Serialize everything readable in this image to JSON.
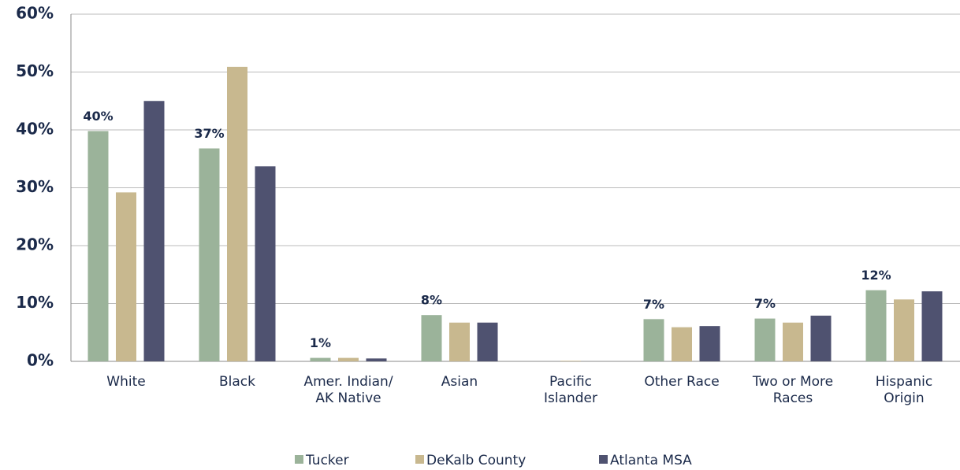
{
  "chart_data": {
    "type": "bar",
    "categories": [
      "White",
      "Black",
      "Amer. Indian/\nAK Native",
      "Asian",
      "Pacific\nIslander",
      "Other Race",
      "Two or More\nRaces",
      "Hispanic\nOrigin"
    ],
    "series": [
      {
        "name": "Tucker",
        "color": "#9bb39a",
        "values": [
          39.8,
          36.8,
          0.6,
          8.0,
          0.0,
          7.3,
          7.4,
          12.3
        ],
        "value_labels": [
          "40%",
          "37%",
          "1%",
          "8%",
          null,
          "7%",
          "7%",
          "12%"
        ]
      },
      {
        "name": "DeKalb County",
        "color": "#c8b88f",
        "values": [
          29.2,
          50.9,
          0.6,
          6.7,
          0.1,
          5.9,
          6.7,
          10.7
        ]
      },
      {
        "name": "Atlanta MSA",
        "color": "#4f5270",
        "values": [
          45.0,
          33.7,
          0.5,
          6.7,
          0.0,
          6.1,
          7.9,
          12.1
        ]
      }
    ],
    "ylim": [
      0,
      60
    ],
    "yticks": [
      {
        "value": 0,
        "label": "0%"
      },
      {
        "value": 10,
        "label": "10%"
      },
      {
        "value": 20,
        "label": "20%"
      },
      {
        "value": 30,
        "label": "30%"
      },
      {
        "value": 40,
        "label": "40%"
      },
      {
        "value": 50,
        "label": "50%"
      },
      {
        "value": 60,
        "label": "60%"
      }
    ],
    "grid": true,
    "legend": "bottom"
  }
}
